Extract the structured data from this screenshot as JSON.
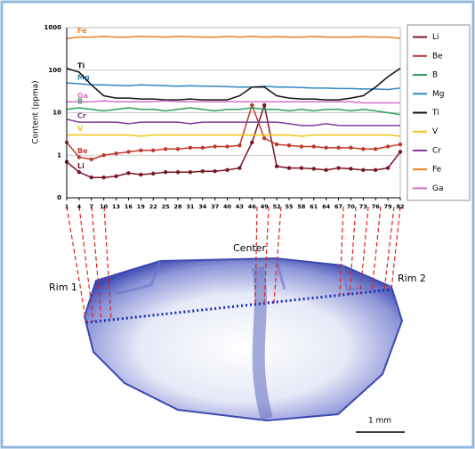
{
  "chart_data": {
    "type": "line",
    "y_label": "Content (ppma)",
    "log_scale": true,
    "grid": true,
    "legend": "right",
    "x": [
      1,
      4,
      7,
      10,
      13,
      16,
      19,
      22,
      25,
      28,
      31,
      34,
      37,
      40,
      43,
      46,
      49,
      52,
      55,
      58,
      61,
      64,
      67,
      70,
      73,
      76,
      79,
      82
    ],
    "xlim": [
      1,
      82
    ],
    "xticks": [
      1,
      4,
      7,
      10,
      13,
      16,
      19,
      22,
      25,
      28,
      31,
      34,
      37,
      40,
      43,
      46,
      49,
      52,
      55,
      58,
      61,
      64,
      67,
      70,
      73,
      76,
      79,
      82
    ],
    "ylim": [
      0.1,
      1000
    ],
    "yticks": [
      {
        "value": 0.1,
        "label": "0"
      },
      1,
      10,
      100,
      1000
    ],
    "series": [
      {
        "name": "Li",
        "color": "#7b1526",
        "markers": true,
        "values": [
          0.7,
          0.4,
          0.3,
          0.3,
          0.32,
          0.38,
          0.35,
          0.37,
          0.4,
          0.4,
          0.4,
          0.42,
          0.42,
          0.45,
          0.5,
          2,
          15,
          0.55,
          0.5,
          0.5,
          0.48,
          0.45,
          0.5,
          0.48,
          0.45,
          0.45,
          0.5,
          1.2
        ]
      },
      {
        "name": "Be",
        "color": "#c0392b",
        "markers": true,
        "values": [
          2,
          0.9,
          0.8,
          1,
          1.1,
          1.2,
          1.3,
          1.3,
          1.4,
          1.4,
          1.5,
          1.5,
          1.6,
          1.6,
          1.7,
          15,
          2.5,
          1.8,
          1.7,
          1.6,
          1.6,
          1.5,
          1.5,
          1.5,
          1.4,
          1.4,
          1.6,
          1.8
        ]
      },
      {
        "name": "B",
        "color": "#27a058",
        "markers": false,
        "values": [
          12,
          13,
          12,
          11,
          12,
          13,
          12,
          12,
          11,
          12,
          13,
          12,
          11,
          12,
          12,
          13,
          12,
          12,
          11,
          12,
          11,
          12,
          12,
          11,
          12,
          11,
          10,
          9
        ]
      },
      {
        "name": "Mg",
        "color": "#2e86c1",
        "markers": false,
        "values": [
          50,
          48,
          45,
          45,
          44,
          43,
          45,
          44,
          43,
          42,
          43,
          42,
          42,
          41,
          40,
          40,
          42,
          40,
          40,
          39,
          38,
          38,
          37,
          37,
          36,
          36,
          35,
          38
        ]
      },
      {
        "name": "Ti",
        "color": "#111111",
        "markers": false,
        "values": [
          110,
          90,
          45,
          25,
          22,
          22,
          21,
          21,
          20,
          20,
          21,
          20,
          20,
          20,
          25,
          40,
          40,
          25,
          22,
          21,
          21,
          20,
          20,
          22,
          25,
          40,
          70,
          110
        ]
      },
      {
        "name": "V",
        "color": "#f1c40f",
        "markers": false,
        "values": [
          3,
          3,
          3,
          3,
          3,
          3,
          2.8,
          3,
          3,
          3,
          3,
          3,
          3,
          3,
          3,
          3,
          3,
          3,
          3,
          2.8,
          3,
          3,
          3,
          3,
          3,
          3,
          3,
          2.8
        ]
      },
      {
        "name": "Cr",
        "color": "#7d3c98",
        "markers": false,
        "values": [
          7,
          6,
          6,
          6,
          6,
          5.5,
          6,
          6,
          6,
          6,
          5.5,
          6,
          6,
          6,
          6,
          6,
          6,
          6,
          5.5,
          5,
          5,
          5.5,
          5,
          5,
          5,
          5,
          5,
          5
        ]
      },
      {
        "name": "Fe",
        "color": "#e67e22",
        "markers": false,
        "values": [
          550,
          600,
          600,
          620,
          600,
          600,
          620,
          610,
          600,
          620,
          610,
          600,
          600,
          620,
          600,
          620,
          600,
          610,
          600,
          600,
          620,
          600,
          600,
          600,
          610,
          600,
          600,
          560
        ]
      },
      {
        "name": "Ga",
        "color": "#d670c6",
        "markers": false,
        "values": [
          18,
          18,
          18,
          19,
          18,
          18,
          18,
          18,
          19,
          18,
          18,
          18,
          18,
          18,
          18,
          18,
          18,
          18,
          18,
          18,
          18,
          18,
          18,
          18,
          17,
          17,
          17,
          17
        ]
      }
    ]
  },
  "figure": {
    "center_label": "Center",
    "rim1_label": "Rim 1",
    "rim2_label": "Rim 2",
    "scale_label": "1 mm"
  }
}
